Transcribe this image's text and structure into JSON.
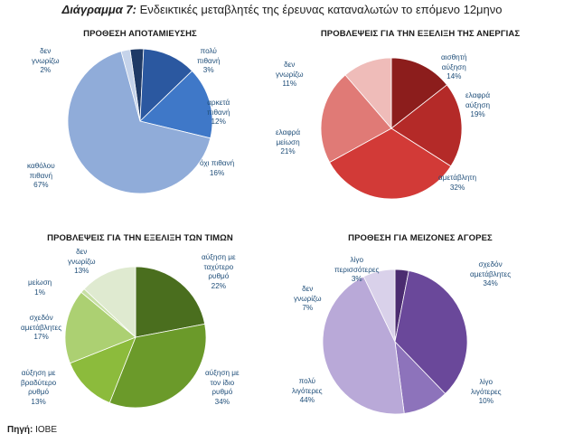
{
  "figure": {
    "title_prefix": "Διάγραμμα 7:",
    "title_text": "Ενδεικτικές μεταβλητές της έρευνας καταναλωτών το επόμενο 12μηνο",
    "source_label": "Πηγή:",
    "source_value": "ΙΟΒΕ"
  },
  "chart_data": [
    {
      "type": "pie",
      "title": "ΠΡΟΘΕΣΗ ΑΠΟΤΑΜΙΕΥΣΗΣ",
      "slices": [
        {
          "label": [
            "πολύ",
            "πιθανή"
          ],
          "pct": "3%",
          "value": 3,
          "color": "#1f3a66"
        },
        {
          "label": [
            "αρκετά",
            "πιθανή"
          ],
          "pct": "12%",
          "value": 12,
          "color": "#2b58a0"
        },
        {
          "label": [
            "όχι πιθανή"
          ],
          "pct": "16%",
          "value": 16,
          "color": "#3f78c8"
        },
        {
          "label": [
            "καθόλου",
            "πιθανή"
          ],
          "pct": "67%",
          "value": 67,
          "color": "#90acd9"
        },
        {
          "label": [
            "δεν",
            "γνωρίζω"
          ],
          "pct": "2%",
          "value": 2,
          "color": "#c5d3ea"
        }
      ]
    },
    {
      "type": "pie",
      "title": "ΠΡΟΒΛΕΨΕΙΣ ΓΙΑ ΤΗΝ ΕΞΕΛΙΞΗ ΤΗΣ ΑΝΕΡΓΙΑΣ",
      "slices": [
        {
          "label": [
            "αισθητή",
            "αύξηση"
          ],
          "pct": "14%",
          "value": 14,
          "color": "#8c1d1c"
        },
        {
          "label": [
            "ελαφρά",
            "αύξηση"
          ],
          "pct": "19%",
          "value": 19,
          "color": "#b42a28"
        },
        {
          "label": [
            "αμετάβλητη"
          ],
          "pct": "32%",
          "value": 32,
          "color": "#d23a37"
        },
        {
          "label": [
            "ελαφρά",
            "μείωση"
          ],
          "pct": "21%",
          "value": 21,
          "color": "#e07a76"
        },
        {
          "label": [
            "δεν",
            "γνωρίζω"
          ],
          "pct": "11%",
          "value": 11,
          "color": "#efbcb9"
        }
      ]
    },
    {
      "type": "pie",
      "title": "ΠΡΟΒΛΕΨΕΙΣ ΓΙΑ ΤΗΝ ΕΞΕΛΙΞΗ ΤΩΝ ΤΙΜΩΝ",
      "slices": [
        {
          "label": [
            "αύξηση με",
            "ταχύτερο",
            "ρυθμό"
          ],
          "pct": "22%",
          "value": 22,
          "color": "#4a6e1e"
        },
        {
          "label": [
            "αύξηση με",
            "τον ίδιο",
            "ρυθμό"
          ],
          "pct": "34%",
          "value": 34,
          "color": "#6b9a2a"
        },
        {
          "label": [
            "αύξηση με",
            "βραδύτερο",
            "ρυθμό"
          ],
          "pct": "13%",
          "value": 13,
          "color": "#8cbb3c"
        },
        {
          "label": [
            "σχεδόν",
            "αμετάβλητες"
          ],
          "pct": "17%",
          "value": 17,
          "color": "#acd072"
        },
        {
          "label": [
            "μείωση"
          ],
          "pct": "1%",
          "value": 1,
          "color": "#c7dfa4"
        },
        {
          "label": [
            "δεν",
            "γνωρίζω"
          ],
          "pct": "13%",
          "value": 13,
          "color": "#dfead0"
        }
      ]
    },
    {
      "type": "pie",
      "title": "ΠΡΟΘΕΣΗ ΓΙΑ ΜΕΙΖΟΝΕΣ ΑΓΟΡΕΣ",
      "slices": [
        {
          "label": [
            "λίγο",
            "περισσότερες"
          ],
          "pct": "3%",
          "value": 3,
          "color": "#4b2c70"
        },
        {
          "label": [
            "σχεδόν",
            "αμετάβλητες"
          ],
          "pct": "34%",
          "value": 34,
          "color": "#6a489a"
        },
        {
          "label": [
            "λίγο",
            "λιγότερες"
          ],
          "pct": "10%",
          "value": 10,
          "color": "#8d73bb"
        },
        {
          "label": [
            "πολύ",
            "λιγότερες"
          ],
          "pct": "44%",
          "value": 44,
          "color": "#b9a9d8"
        },
        {
          "label": [
            "δεν",
            "γνωρίζω"
          ],
          "pct": "7%",
          "value": 7,
          "color": "#d9d1ea"
        }
      ]
    }
  ]
}
